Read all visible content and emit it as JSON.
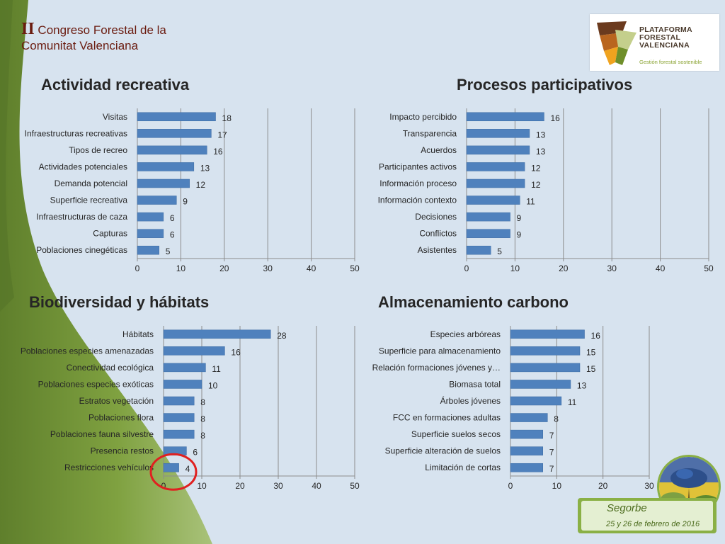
{
  "header": {
    "roman": "II",
    "line1": "Congreso Forestal de la",
    "line2": "Comunitat Valenciana"
  },
  "logo": {
    "line1": "PLATAFORMA",
    "line2": "FORESTAL",
    "line3": "VALENCIANA",
    "tagline": "Gestión forestal sostenible"
  },
  "footer": {
    "place": "Segorbe",
    "date": "25 y 26 de febrero de 2016"
  },
  "highlight": {
    "chart": 2,
    "category": "Restricciones vehículos",
    "color": "#e02020"
  },
  "colors": {
    "bar": "#4f81bd",
    "bar_border": "#3a6aa3",
    "grid": "#8c8c8c",
    "background": "#d7e3ef",
    "green_band": "#7a9a3d"
  },
  "chart_data": [
    {
      "type": "bar",
      "orientation": "horizontal",
      "title": "Actividad recreativa",
      "categories": [
        "Visitas",
        "Infraestructuras recreativas",
        "Tipos de recreo",
        "Actividades potenciales",
        "Demanda potencial",
        "Superficie recreativa",
        "Infraestructuras de caza",
        "Capturas",
        "Poblaciones cinegéticas"
      ],
      "values": [
        18,
        17,
        16,
        13,
        12,
        9,
        6,
        6,
        5
      ],
      "xlim": [
        0,
        50
      ],
      "ticks": [
        0,
        10,
        20,
        30,
        40,
        50
      ],
      "grid": true
    },
    {
      "type": "bar",
      "orientation": "horizontal",
      "title": "Procesos participativos",
      "categories": [
        "Impacto percibido",
        "Transparencia",
        "Acuerdos",
        "Participantes activos",
        "Información proceso",
        "Información contexto",
        "Decisiones",
        "Conflictos",
        "Asistentes"
      ],
      "values": [
        16,
        13,
        13,
        12,
        12,
        11,
        9,
        9,
        5
      ],
      "xlim": [
        0,
        50
      ],
      "ticks": [
        0,
        10,
        20,
        30,
        40,
        50
      ],
      "grid": true
    },
    {
      "type": "bar",
      "orientation": "horizontal",
      "title": "Biodiversidad y hábitats",
      "categories": [
        "Hábitats",
        "Poblaciones especies amenazadas",
        "Conectividad ecológica",
        "Poblaciones especies exóticas",
        "Estratos vegetación",
        "Poblaciones flora",
        "Poblaciones fauna silvestre",
        "Presencia restos",
        "Restricciones vehículos"
      ],
      "values": [
        28,
        16,
        11,
        10,
        8,
        8,
        8,
        6,
        4
      ],
      "xlim": [
        0,
        50
      ],
      "ticks": [
        0,
        10,
        20,
        30,
        40,
        50
      ],
      "grid": true
    },
    {
      "type": "bar",
      "orientation": "horizontal",
      "title": "Almacenamiento carbono",
      "categories": [
        "Especies arbóreas",
        "Superficie para almacenamiento",
        "Relación formaciones jóvenes y…",
        "Biomasa total",
        "Árboles jóvenes",
        "FCC en formaciones adultas",
        "Superficie suelos secos",
        "Superficie alteración de suelos",
        "Limitación de cortas"
      ],
      "values": [
        16,
        15,
        15,
        13,
        11,
        8,
        7,
        7,
        7
      ],
      "xlim": [
        0,
        30
      ],
      "ticks": [
        0,
        10,
        20,
        30
      ],
      "grid": true
    }
  ]
}
